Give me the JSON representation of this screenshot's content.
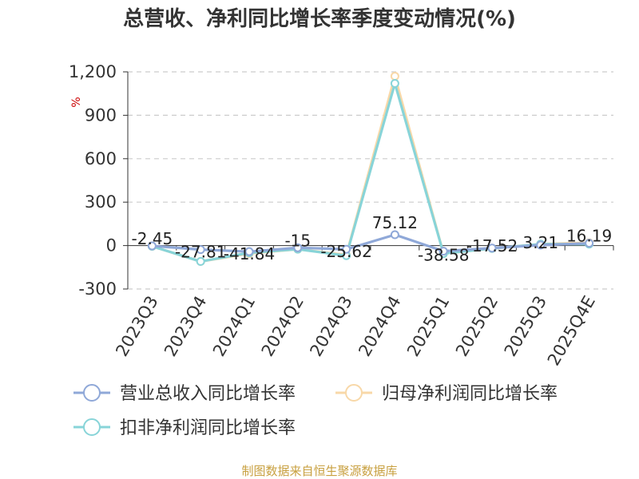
{
  "chart_data": {
    "type": "line",
    "title": "总营收、净利同比增长率季度变动情况(%)",
    "unit": "%",
    "source": "制图数据来自恒生聚源数据库",
    "categories": [
      "2023Q3",
      "2023Q4",
      "2024Q1",
      "2024Q2",
      "2024Q3",
      "2024Q4",
      "2025Q1",
      "2025Q2",
      "2025Q3",
      "2025Q4E"
    ],
    "ylim": [
      -300,
      1200
    ],
    "yticks": [
      "-300",
      "0",
      "300",
      "600",
      "900",
      "1,200"
    ],
    "grid": true,
    "legend_position": "bottom",
    "series": [
      {
        "name": "营业总收入同比增长率",
        "color": "#8fa8d8",
        "values": [
          -2.45,
          -27.81,
          -41.84,
          -15.0,
          -25.62,
          75.12,
          -38.58,
          -17.52,
          3.21,
          16.19
        ],
        "labels": [
          "-2.45",
          "-27.81",
          "-41.84",
          "-15",
          "-25.62",
          "75.12",
          "-38.58",
          "-17.52",
          "3.21",
          "16.19"
        ]
      },
      {
        "name": "归母净利润同比增长率",
        "color": "#f8d8a8",
        "values": [
          -5,
          -110,
          -55,
          -25,
          -65,
          1170,
          -55,
          -20,
          10,
          20
        ]
      },
      {
        "name": "扣非净利润同比增长率",
        "color": "#88d4d8",
        "values": [
          -5,
          -110,
          -50,
          -25,
          -70,
          1120,
          -55,
          -20,
          10,
          10
        ]
      }
    ]
  }
}
